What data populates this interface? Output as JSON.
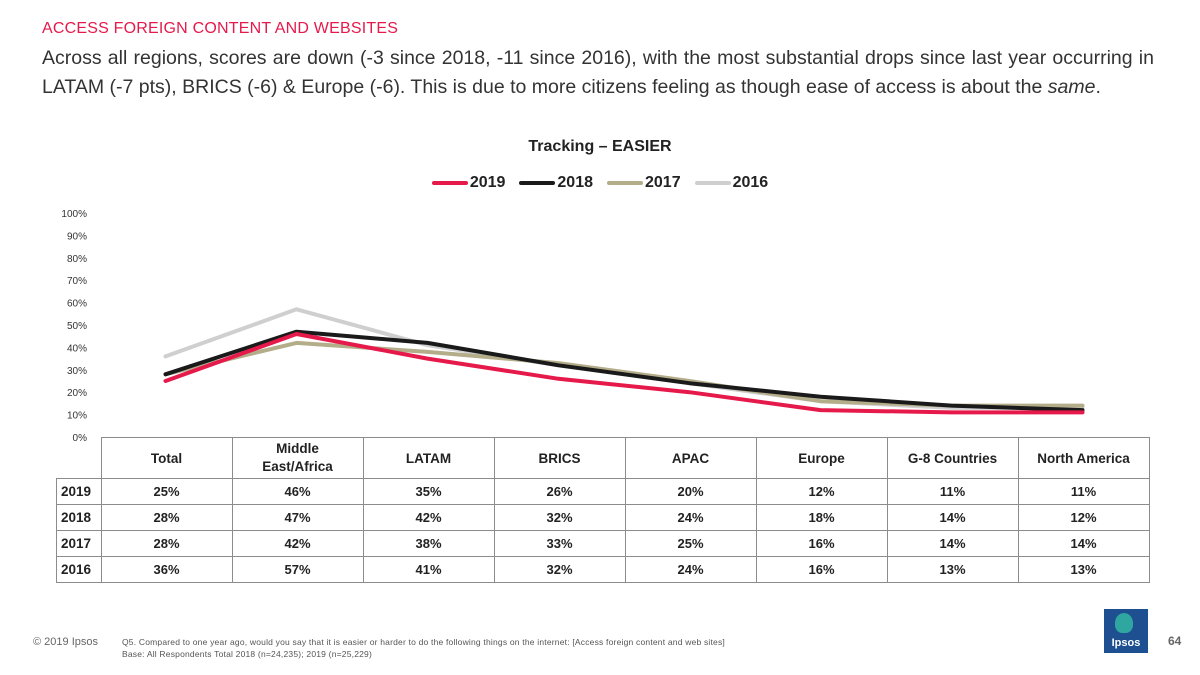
{
  "header": {
    "kicker": "ACCESS FOREIGN CONTENT AND WEBSITES",
    "headline_part1": "Across all regions, scores are down (-3 since 2018, -11 since 2016), with the most substantial drops since last year occurring in LATAM (-7 pts), BRICS (-6) & Europe (-6). This is due to more citizens feeling as though ease of access is about the ",
    "headline_em": "same",
    "headline_end": "."
  },
  "chart_data": {
    "type": "line",
    "title": "Tracking – EASIER",
    "categories": [
      "Total",
      "Middle East/Africa",
      "LATAM",
      "BRICS",
      "APAC",
      "Europe",
      "G-8 Countries",
      "North America"
    ],
    "ylim": [
      0,
      100
    ],
    "yticks": [
      "0%",
      "10%",
      "20%",
      "30%",
      "40%",
      "50%",
      "60%",
      "70%",
      "80%",
      "90%",
      "100%"
    ],
    "legend_position": "top-center",
    "grid": false,
    "series": [
      {
        "name": "2019",
        "color": "#e6194b",
        "values": [
          25,
          46,
          35,
          26,
          20,
          12,
          11,
          11
        ],
        "labels": [
          "25%",
          "46%",
          "35%",
          "26%",
          "20%",
          "12%",
          "11%",
          "11%"
        ]
      },
      {
        "name": "2018",
        "color": "#1a1a1a",
        "values": [
          28,
          47,
          42,
          32,
          24,
          18,
          14,
          12
        ],
        "labels": [
          "28%",
          "47%",
          "42%",
          "32%",
          "24%",
          "18%",
          "14%",
          "12%"
        ]
      },
      {
        "name": "2017",
        "color": "#b3ad8a",
        "values": [
          28,
          42,
          38,
          33,
          25,
          16,
          14,
          14
        ],
        "labels": [
          "28%",
          "42%",
          "38%",
          "33%",
          "25%",
          "16%",
          "14%",
          "14%"
        ]
      },
      {
        "name": "2016",
        "color": "#cfcfcf",
        "values": [
          36,
          57,
          41,
          32,
          24,
          16,
          13,
          13
        ],
        "labels": [
          "36%",
          "57%",
          "41%",
          "32%",
          "24%",
          "16%",
          "13%",
          "13%"
        ]
      }
    ]
  },
  "table": {
    "headers": [
      "Total",
      "Middle\nEast/Africa",
      "LATAM",
      "BRICS",
      "APAC",
      "Europe",
      "G-8 Countries",
      "North America"
    ]
  },
  "footer": {
    "copyright": "© 2019 Ipsos",
    "question": "Q5. Compared to one year ago, would you say that it is easier or harder to do the following things on the internet: [Access foreign content and web sites]",
    "base": "Base: All Respondents Total 2018 (n=24,235); 2019 (n=25,229)",
    "logo_text": "Ipsos",
    "page_number": "64"
  }
}
